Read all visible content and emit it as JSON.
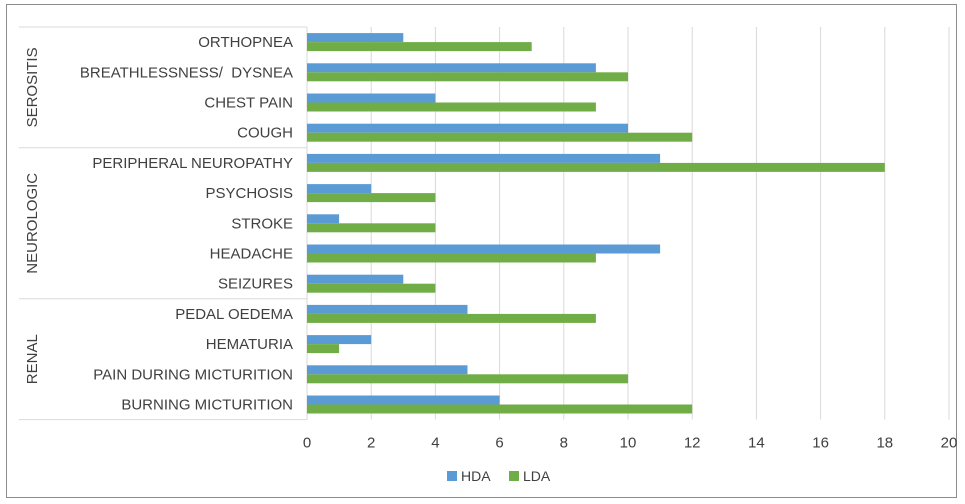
{
  "chart_data": {
    "type": "bar",
    "orientation": "horizontal",
    "title": "",
    "xlabel": "",
    "ylabel": "",
    "xlim": [
      0,
      20
    ],
    "xticks": [
      0,
      2,
      4,
      6,
      8,
      10,
      12,
      14,
      16,
      18,
      20
    ],
    "grid": true,
    "legend_position": "bottom",
    "groups": [
      {
        "name": "SEROSITIS",
        "categories": [
          "ORTHOPNEA",
          "BREATHLESSNESS/  DYSNEA",
          "CHEST PAIN",
          "COUGH"
        ]
      },
      {
        "name": "NEUROLOGIC",
        "categories": [
          "PERIPHERAL NEUROPATHY",
          "PSYCHOSIS",
          "STROKE",
          "HEADACHE",
          "SEIZURES"
        ]
      },
      {
        "name": "RENAL",
        "categories": [
          "PEDAL OEDEMA",
          "HEMATURIA",
          "PAIN DURING MICTURITION",
          "BURNING MICTURITION"
        ]
      }
    ],
    "categories": [
      "ORTHOPNEA",
      "BREATHLESSNESS/  DYSNEA",
      "CHEST PAIN",
      "COUGH",
      "PERIPHERAL NEUROPATHY",
      "PSYCHOSIS",
      "STROKE",
      "HEADACHE",
      "SEIZURES",
      "PEDAL OEDEMA",
      "HEMATURIA",
      "PAIN DURING MICTURITION",
      "BURNING MICTURITION"
    ],
    "series": [
      {
        "name": "HDA",
        "color": "#5b9bd5",
        "values": [
          3,
          9,
          4,
          10,
          11,
          2,
          1,
          11,
          3,
          5,
          2,
          5,
          6
        ]
      },
      {
        "name": "LDA",
        "color": "#70ad47",
        "values": [
          7,
          10,
          9,
          12,
          18,
          4,
          4,
          9,
          4,
          9,
          1,
          10,
          12
        ]
      }
    ]
  }
}
